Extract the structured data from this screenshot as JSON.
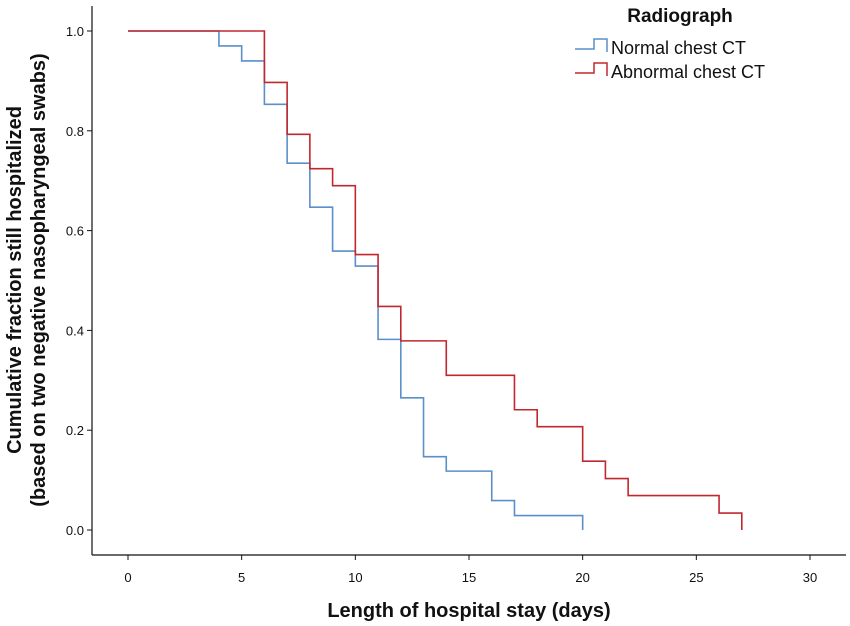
{
  "chart_data": {
    "type": "line",
    "step": true,
    "xlabel": "Length of hospital stay (days)",
    "ylabel_line1": "Cumulative fraction still hospitalized",
    "ylabel_line2": "(based on two negative nasopharyngeal swabs)",
    "xlim": [
      0,
      30
    ],
    "ylim": [
      0,
      1.0
    ],
    "xticks": [
      "0",
      "5",
      "10",
      "15",
      "20",
      "25",
      "30"
    ],
    "yticks": [
      "0.0",
      "0.2",
      "0.4",
      "0.6",
      "0.8",
      "1.0"
    ],
    "grid": false,
    "legend": {
      "title": "Radiograph",
      "position": "top-right"
    },
    "series": [
      {
        "name": "Normal chest CT",
        "color": "#5b8fc9",
        "x": [
          0,
          4,
          5,
          6,
          7,
          8,
          9,
          10,
          11,
          12,
          13,
          14,
          16,
          17,
          20
        ],
        "y": [
          1.0,
          0.97,
          0.94,
          0.853,
          0.735,
          0.647,
          0.559,
          0.529,
          0.382,
          0.265,
          0.147,
          0.118,
          0.059,
          0.029,
          0.0
        ]
      },
      {
        "name": "Abnormal chest CT",
        "color": "#c0282e",
        "x": [
          0,
          6,
          7,
          8,
          9,
          10,
          11,
          12,
          14,
          17,
          18,
          20,
          21,
          22,
          26,
          27
        ],
        "y": [
          1.0,
          0.897,
          0.793,
          0.724,
          0.69,
          0.552,
          0.448,
          0.379,
          0.31,
          0.241,
          0.207,
          0.138,
          0.103,
          0.069,
          0.034,
          0.0
        ]
      }
    ]
  }
}
